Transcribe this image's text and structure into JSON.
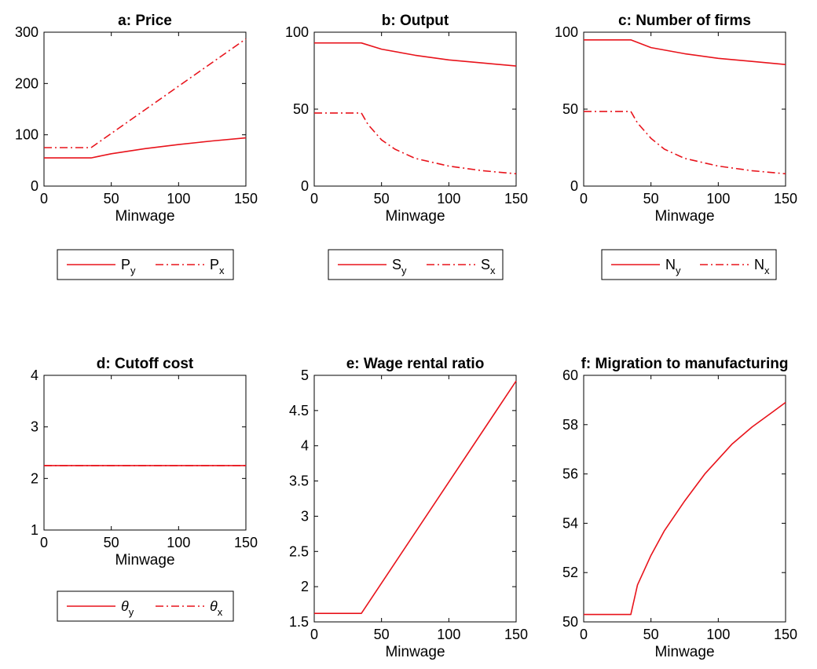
{
  "colors": {
    "line": "#e8131b",
    "axis": "#000000",
    "background": "#ffffff"
  },
  "chart_data": [
    {
      "id": "a",
      "type": "line",
      "title": "a: Price",
      "xlabel": "Minwage",
      "ylabel": "",
      "xlim": [
        0,
        150
      ],
      "ylim": [
        0,
        300
      ],
      "xticks": [
        "0",
        "50",
        "100",
        "150"
      ],
      "yticks": [
        "0",
        "100",
        "200",
        "300"
      ],
      "grid": false,
      "legend": {
        "placement": "below",
        "entries": [
          {
            "base": "P",
            "sub": "y",
            "style": "solid"
          },
          {
            "base": "P",
            "sub": "x",
            "style": "dashdot"
          }
        ]
      },
      "series": [
        {
          "legend_index": 0,
          "style": "solid",
          "x": [
            0,
            35,
            50,
            75,
            100,
            125,
            150
          ],
          "y": [
            55,
            55,
            63,
            73,
            81,
            88,
            94
          ]
        },
        {
          "legend_index": 1,
          "style": "dashdot",
          "x": [
            0,
            35,
            150
          ],
          "y": [
            75,
            75,
            287
          ]
        }
      ]
    },
    {
      "id": "b",
      "type": "line",
      "title": "b: Output",
      "xlabel": "Minwage",
      "ylabel": "",
      "xlim": [
        0,
        150
      ],
      "ylim": [
        0,
        100
      ],
      "xticks": [
        "0",
        "50",
        "100",
        "150"
      ],
      "yticks": [
        "0",
        "50",
        "100"
      ],
      "grid": false,
      "legend": {
        "placement": "below",
        "entries": [
          {
            "base": "S",
            "sub": "y",
            "style": "solid"
          },
          {
            "base": "S",
            "sub": "x",
            "style": "dashdot"
          }
        ]
      },
      "series": [
        {
          "legend_index": 0,
          "style": "solid",
          "x": [
            0,
            35,
            50,
            75,
            100,
            125,
            150
          ],
          "y": [
            93,
            93,
            89,
            85,
            82,
            80,
            78
          ]
        },
        {
          "legend_index": 1,
          "style": "dashdot",
          "x": [
            0,
            35,
            40,
            50,
            60,
            75,
            100,
            125,
            150
          ],
          "y": [
            47.5,
            47.5,
            40,
            30,
            24,
            18,
            13,
            10,
            8
          ]
        }
      ]
    },
    {
      "id": "c",
      "type": "line",
      "title": "c: Number of firms",
      "xlabel": "Minwage",
      "ylabel": "",
      "xlim": [
        0,
        150
      ],
      "ylim": [
        0,
        100
      ],
      "xticks": [
        "0",
        "50",
        "100",
        "150"
      ],
      "yticks": [
        "0",
        "50",
        "100"
      ],
      "grid": false,
      "legend": {
        "placement": "below",
        "entries": [
          {
            "base": "N",
            "sub": "y",
            "style": "solid"
          },
          {
            "base": "N",
            "sub": "x",
            "style": "dashdot"
          }
        ]
      },
      "series": [
        {
          "legend_index": 0,
          "style": "solid",
          "x": [
            0,
            35,
            50,
            75,
            100,
            125,
            150
          ],
          "y": [
            95,
            95,
            90,
            86,
            83,
            81,
            79
          ]
        },
        {
          "legend_index": 1,
          "style": "dashdot",
          "x": [
            0,
            35,
            40,
            50,
            60,
            75,
            100,
            125,
            150
          ],
          "y": [
            48.5,
            48.5,
            41,
            31,
            24,
            18,
            13,
            10,
            8
          ]
        }
      ]
    },
    {
      "id": "d",
      "type": "line",
      "title": "d: Cutoff cost",
      "xlabel": "Minwage",
      "ylabel": "",
      "xlim": [
        0,
        150
      ],
      "ylim": [
        1,
        4
      ],
      "xticks": [
        "0",
        "50",
        "100",
        "150"
      ],
      "yticks": [
        "1",
        "2",
        "3",
        "4"
      ],
      "grid": false,
      "legend": {
        "placement": "below",
        "entries": [
          {
            "base": "θ",
            "sub": "y",
            "style": "solid"
          },
          {
            "base": "θ",
            "sub": "x",
            "style": "dashdot"
          }
        ]
      },
      "series": [
        {
          "legend_index": 0,
          "style": "solid",
          "x": [
            0,
            150
          ],
          "y": [
            2.25,
            2.25
          ]
        },
        {
          "legend_index": 1,
          "style": "dashdot",
          "x": [
            0,
            150
          ],
          "y": [
            2.25,
            2.25
          ]
        }
      ]
    },
    {
      "id": "e",
      "type": "line",
      "title": "e: Wage rental ratio",
      "xlabel": "Minwage",
      "ylabel": "",
      "xlim": [
        0,
        150
      ],
      "ylim": [
        1.5,
        5
      ],
      "xticks": [
        "0",
        "50",
        "100",
        "150"
      ],
      "yticks": [
        "1.5",
        "2",
        "2.5",
        "3",
        "3.5",
        "4",
        "4.5",
        "5"
      ],
      "grid": false,
      "legend": null,
      "series": [
        {
          "style": "solid",
          "x": [
            0,
            35,
            150
          ],
          "y": [
            1.62,
            1.62,
            4.92
          ]
        }
      ]
    },
    {
      "id": "f",
      "type": "line",
      "title": "f: Migration to manufacturing",
      "xlabel": "Minwage",
      "ylabel": "",
      "xlim": [
        0,
        150
      ],
      "ylim": [
        50,
        60
      ],
      "xticks": [
        "0",
        "50",
        "100",
        "150"
      ],
      "yticks": [
        "50",
        "52",
        "54",
        "56",
        "58",
        "60"
      ],
      "grid": false,
      "legend": null,
      "series": [
        {
          "style": "solid",
          "x": [
            0,
            35,
            40,
            50,
            60,
            75,
            90,
            100,
            110,
            125,
            140,
            150
          ],
          "y": [
            50.3,
            50.3,
            51.5,
            52.7,
            53.7,
            54.9,
            56.0,
            56.6,
            57.2,
            57.9,
            58.5,
            58.9
          ]
        }
      ]
    }
  ]
}
